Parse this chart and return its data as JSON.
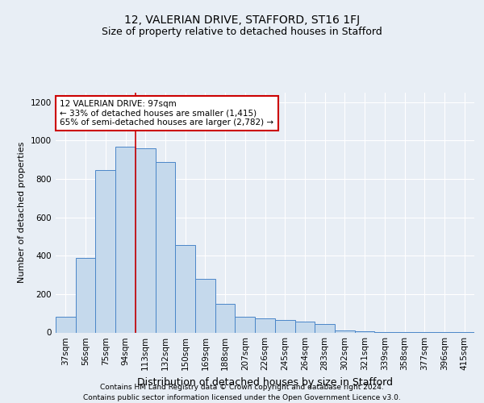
{
  "title1": "12, VALERIAN DRIVE, STAFFORD, ST16 1FJ",
  "title2": "Size of property relative to detached houses in Stafford",
  "xlabel": "Distribution of detached houses by size in Stafford",
  "ylabel": "Number of detached properties",
  "categories": [
    "37sqm",
    "56sqm",
    "75sqm",
    "94sqm",
    "113sqm",
    "132sqm",
    "150sqm",
    "169sqm",
    "188sqm",
    "207sqm",
    "226sqm",
    "245sqm",
    "264sqm",
    "283sqm",
    "302sqm",
    "321sqm",
    "339sqm",
    "358sqm",
    "377sqm",
    "396sqm",
    "415sqm"
  ],
  "values": [
    80,
    390,
    845,
    970,
    960,
    890,
    455,
    280,
    150,
    80,
    75,
    65,
    55,
    45,
    10,
    5,
    4,
    3,
    2,
    1,
    1
  ],
  "bar_color": "#c5d9ec",
  "bar_edge_color": "#4a86c8",
  "vline_x_index": 4,
  "vline_color": "#cc0000",
  "annotation_line1": "12 VALERIAN DRIVE: 97sqm",
  "annotation_line2": "← 33% of detached houses are smaller (1,415)",
  "annotation_line3": "65% of semi-detached houses are larger (2,782) →",
  "annotation_box_color": "white",
  "annotation_box_edge_color": "#cc0000",
  "ylim": [
    0,
    1250
  ],
  "yticks": [
    0,
    200,
    400,
    600,
    800,
    1000,
    1200
  ],
  "footer1": "Contains HM Land Registry data © Crown copyright and database right 2024.",
  "footer2": "Contains public sector information licensed under the Open Government Licence v3.0.",
  "bg_color": "#e8eef5",
  "plot_bg_color": "#e8eef5",
  "grid_color": "#ffffff",
  "title_fontsize": 10,
  "subtitle_fontsize": 9,
  "ylabel_fontsize": 8,
  "xlabel_fontsize": 9,
  "tick_fontsize": 7.5,
  "footer_fontsize": 6.5
}
